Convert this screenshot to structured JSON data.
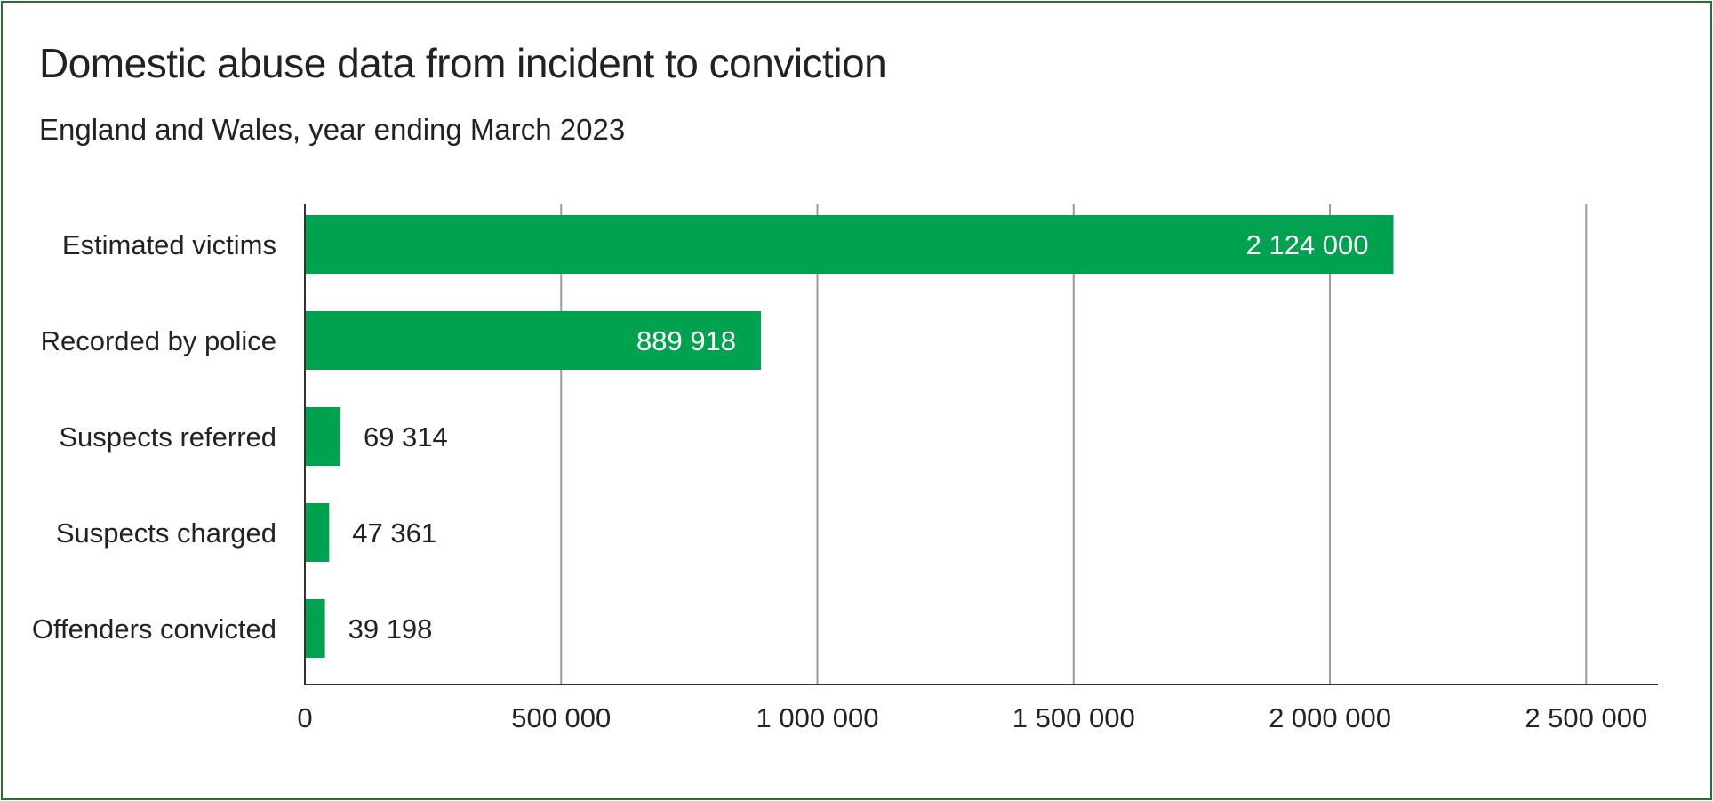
{
  "chart_data": {
    "type": "bar",
    "orientation": "horizontal",
    "title": "Domestic abuse data from incident to conviction",
    "subtitle": "England and Wales, year ending March 2023",
    "categories": [
      "Estimated victims",
      "Recorded by police",
      "Suspects referred",
      "Suspects charged",
      "Offenders convicted"
    ],
    "values": [
      2124000,
      889918,
      69314,
      47361,
      39198
    ],
    "value_labels": [
      "2 124 000",
      "889 918",
      "69 314",
      "47 361",
      "39 198"
    ],
    "xlim": [
      0,
      2640000
    ],
    "xticks": [
      0,
      500000,
      1000000,
      1500000,
      2000000,
      2500000
    ],
    "xtick_labels": [
      "0",
      "500 000",
      "1 000 000",
      "1 500 000",
      "2 000 000",
      "2 500 000"
    ],
    "xlabel": "",
    "ylabel": "",
    "grid": "vertical",
    "legend": "none",
    "colors": {
      "bar": "#00a14f",
      "grid": "#9a9a9a",
      "axis": "#333333",
      "text": "#222222",
      "inside_label": "#ffffff",
      "border": "#2f6b35"
    }
  }
}
